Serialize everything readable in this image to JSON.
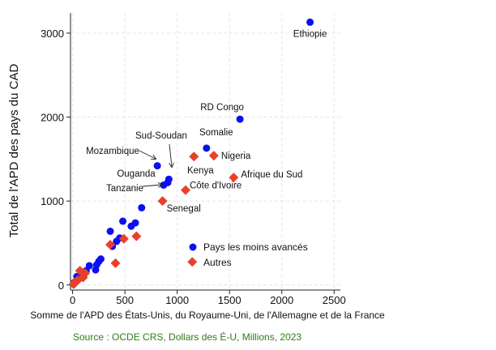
{
  "chart_data": {
    "type": "scatter",
    "xlabel": "Somme de l'APD des États-Unis, du Royaume-Uni, de l'Allemagne et de la France",
    "ylabel": "Total de l'APD des pays du CAD",
    "source": "Source : OCDE CRS, Dollars des É-U, Millions, 2023",
    "xlim": [
      -20,
      2560
    ],
    "ylim": [
      -60,
      3240
    ],
    "xticks": [
      0,
      500,
      1000,
      1500,
      2000,
      2500
    ],
    "xtick_labels": [
      "0",
      "500",
      "1000",
      "1500",
      "2000",
      "2500"
    ],
    "yticks": [
      0,
      1000,
      2000,
      3000
    ],
    "ytick_labels": [
      "0",
      "1000",
      "2000",
      "3000"
    ],
    "grid": true,
    "legend_position": "lower-right",
    "colors": {
      "ldc": "#0a10f0",
      "other": "#e8412b",
      "source": "#2e7d16"
    },
    "series": [
      {
        "name": "Pays les moins avancés",
        "marker": "circle",
        "color": "#0a10f0",
        "points": [
          [
            2270,
            3130
          ],
          [
            1600,
            1975
          ],
          [
            1280,
            1630
          ],
          [
            810,
            1420
          ],
          [
            920,
            1260
          ],
          [
            910,
            1220
          ],
          [
            870,
            1190
          ],
          [
            660,
            920
          ],
          [
            600,
            740
          ],
          [
            560,
            700
          ],
          [
            480,
            760
          ],
          [
            450,
            560
          ],
          [
            420,
            520
          ],
          [
            360,
            640
          ],
          [
            380,
            460
          ],
          [
            270,
            310
          ],
          [
            250,
            280
          ],
          [
            230,
            240
          ],
          [
            220,
            180
          ],
          [
            160,
            230
          ],
          [
            130,
            170
          ],
          [
            110,
            150
          ],
          [
            90,
            120
          ],
          [
            70,
            90
          ],
          [
            50,
            60
          ],
          [
            40,
            100
          ],
          [
            30,
            40
          ],
          [
            15,
            30
          ],
          [
            10,
            10
          ]
        ]
      },
      {
        "name": "Autres",
        "marker": "diamond",
        "color": "#e8412b",
        "points": [
          [
            1350,
            1540
          ],
          [
            1160,
            1530
          ],
          [
            1540,
            1280
          ],
          [
            1080,
            1130
          ],
          [
            860,
            1000
          ],
          [
            610,
            580
          ],
          [
            490,
            550
          ],
          [
            360,
            480
          ],
          [
            410,
            260
          ],
          [
            70,
            170
          ],
          [
            120,
            140
          ],
          [
            100,
            90
          ],
          [
            50,
            60
          ],
          [
            20,
            30
          ],
          [
            10,
            10
          ]
        ]
      }
    ],
    "annotations": [
      {
        "text": "Ethiopie",
        "point": [
          2270,
          3130
        ]
      },
      {
        "text": "RD Congo",
        "point": [
          1600,
          1975
        ]
      },
      {
        "text": "Somalie",
        "point": [
          1280,
          1630
        ]
      },
      {
        "text": "Nigeria",
        "point": [
          1350,
          1540
        ]
      },
      {
        "text": "Kenya",
        "point": [
          1160,
          1530
        ]
      },
      {
        "text": "Afrique du Sud",
        "point": [
          1540,
          1280
        ]
      },
      {
        "text": "Côte d'Ivoire",
        "point": [
          1080,
          1130
        ]
      },
      {
        "text": "Senegal",
        "point": [
          860,
          1000
        ]
      },
      {
        "text": "Sud-Soudan",
        "point": [
          920,
          1260
        ]
      },
      {
        "text": "Mozambique",
        "point": [
          810,
          1420
        ]
      },
      {
        "text": "Ouganda",
        "point": [
          910,
          1220
        ]
      },
      {
        "text": "Tanzanie",
        "point": [
          870,
          1190
        ]
      }
    ]
  }
}
